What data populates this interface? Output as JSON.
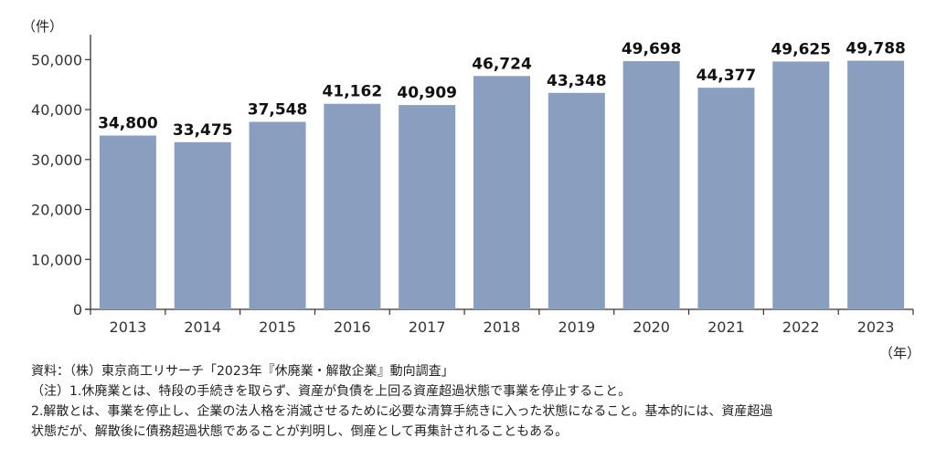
{
  "chart_data": {
    "type": "bar",
    "categories": [
      "2013",
      "2014",
      "2015",
      "2016",
      "2017",
      "2018",
      "2019",
      "2020",
      "2021",
      "2022",
      "2023"
    ],
    "values": [
      34800,
      33475,
      37548,
      41162,
      40909,
      46724,
      43348,
      49698,
      44377,
      49625,
      49788
    ],
    "data_labels": [
      "34,800",
      "33,475",
      "37,548",
      "41,162",
      "40,909",
      "46,724",
      "43,348",
      "49,698",
      "44,377",
      "49,625",
      "49,788"
    ],
    "ylabel": "（件）",
    "xlabel": "（年）",
    "ylim": [
      0,
      55000
    ],
    "yticks": [
      0,
      10000,
      20000,
      30000,
      40000,
      50000
    ],
    "ytick_labels": [
      "0",
      "10,000",
      "20,000",
      "30,000",
      "40,000",
      "50,000"
    ],
    "grid": false,
    "bar_color": "#8a9fbf"
  },
  "notes": {
    "source": "資料：（株）東京商工リサーチ「2023年『休廃業・解散企業』動向調査」",
    "note1": "（注）1.休廃業とは、特段の手続きを取らず、資産が負債を上回る資産超過状態で事業を停止すること。",
    "note2a": "2.解散とは、事業を停止し、企業の法人格を消滅させるために必要な清算手続きに入った状態になること。基本的には、資産超過",
    "note2b": "状態だが、解散後に債務超過状態であることが判明し、倒産として再集計されることもある。"
  }
}
